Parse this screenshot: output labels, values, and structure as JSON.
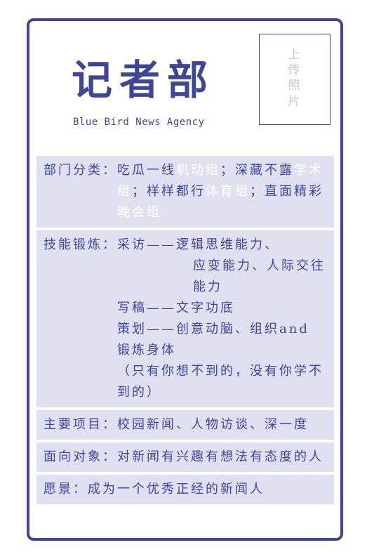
{
  "header": {
    "title": "记者部",
    "subtitle": "Blue Bird News Agency",
    "photo_text": [
      "上",
      "传",
      "照",
      "片"
    ]
  },
  "sections": {
    "category": {
      "label": "部门分类：",
      "parts": [
        "吃瓜一线",
        "机动组",
        "；深藏不露",
        "学术组",
        "；样样都行",
        "体育组",
        "；直面精彩",
        "晚会组"
      ]
    },
    "skills": {
      "label": "技能锻炼：",
      "line1": "采访——逻辑思维能力、",
      "line2": "应变能力、人际交往能力",
      "line3": "写稿——文字功底",
      "line4": "策划——创意动脑、组织and 锻炼身体",
      "line5": "（只有你想不到的，没有你学不到的）"
    },
    "projects": {
      "label": "主要项目：",
      "text": "校园新闻、人物访谈、深一度"
    },
    "audience": {
      "label": "面向对象：",
      "text": "对新闻有兴趣有想法有态度的人"
    },
    "vision": {
      "label": "愿景：",
      "text": "成为一个优秀正经的新闻人"
    }
  },
  "colors": {
    "primary": "#3f4696",
    "section_bg": "#dfe1f1",
    "highlight_text": "#ffffff",
    "photo_placeholder_text": "#c2c4d8"
  }
}
